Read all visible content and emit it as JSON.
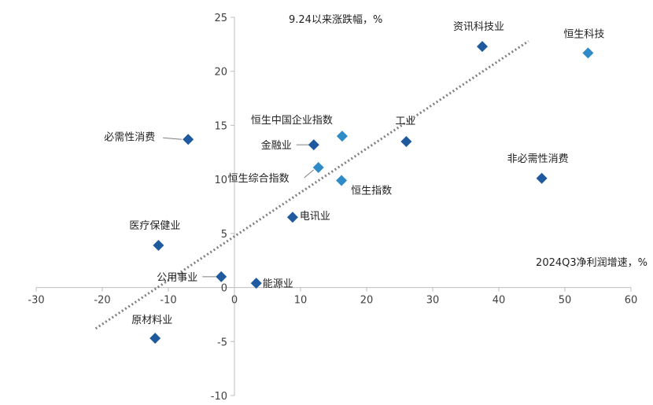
{
  "chart_data": {
    "type": "scatter",
    "title": "",
    "xlabel": "2024Q3净利润增速，%",
    "ylabel": "9.24以来涨跌幅，%",
    "xlim": [
      -30,
      60
    ],
    "ylim": [
      -10,
      25
    ],
    "x_ticks": [
      -30,
      -20,
      -10,
      0,
      10,
      20,
      30,
      40,
      50,
      60
    ],
    "y_ticks": [
      -10,
      -5,
      0,
      5,
      10,
      15,
      20,
      25
    ],
    "grid": false,
    "legend": "none",
    "colors": {
      "sector": "#1f5a9e",
      "index": "#2e8bc8",
      "trend": "#808080"
    },
    "points": [
      {
        "label": "资讯科技业",
        "x": 37.5,
        "y": 22.3,
        "kind": "sector"
      },
      {
        "label": "恒生科技",
        "x": 53.5,
        "y": 21.7,
        "kind": "index"
      },
      {
        "label": "必需性消费",
        "x": -7,
        "y": 13.7,
        "kind": "sector"
      },
      {
        "label": "恒生中国企业指数",
        "x": 16.3,
        "y": 14.0,
        "kind": "index"
      },
      {
        "label": "工业",
        "x": 26,
        "y": 13.5,
        "kind": "sector"
      },
      {
        "label": "金融业",
        "x": 12,
        "y": 13.2,
        "kind": "sector"
      },
      {
        "label": "恒生综合指数",
        "x": 12.7,
        "y": 11.1,
        "kind": "index"
      },
      {
        "label": "恒生指数",
        "x": 16.2,
        "y": 9.9,
        "kind": "index"
      },
      {
        "label": "非必需性消费",
        "x": 46.5,
        "y": 10.1,
        "kind": "sector"
      },
      {
        "label": "电讯业",
        "x": 8.8,
        "y": 6.5,
        "kind": "sector"
      },
      {
        "label": "医疗保健业",
        "x": -11.5,
        "y": 3.9,
        "kind": "sector"
      },
      {
        "label": "公用事业",
        "x": -2,
        "y": 1.0,
        "kind": "sector"
      },
      {
        "label": "能源业",
        "x": 3.3,
        "y": 0.4,
        "kind": "sector"
      },
      {
        "label": "原材料业",
        "x": -12,
        "y": -4.7,
        "kind": "sector"
      }
    ],
    "trendline": {
      "style": "dotted",
      "from": [
        -21,
        -3.8
      ],
      "to": [
        44.5,
        22.8
      ]
    }
  }
}
